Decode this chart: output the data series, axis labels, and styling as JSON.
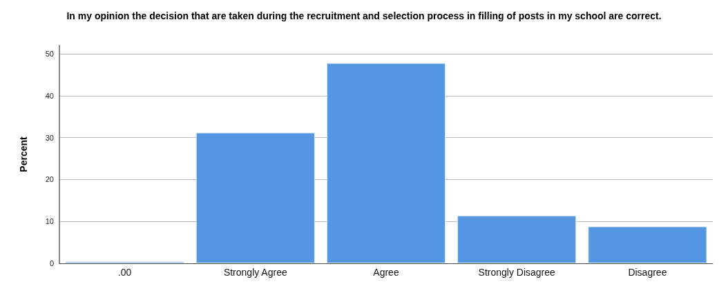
{
  "chart_data": {
    "type": "bar",
    "title": "In my opinion the decision that are taken during the recruitment and selection process in filling of posts in my school are correct.",
    "ylabel": "Percent",
    "categories": [
      ".00",
      "Strongly Agree",
      "Agree",
      "Strongly Disagree",
      "Disagree"
    ],
    "values": [
      0.4,
      31.2,
      47.8,
      11.4,
      8.8
    ],
    "color": "#5596e3",
    "ylim": [
      0,
      52
    ],
    "yticks": [
      0,
      10,
      20,
      30,
      40,
      50
    ],
    "grid": "y"
  }
}
